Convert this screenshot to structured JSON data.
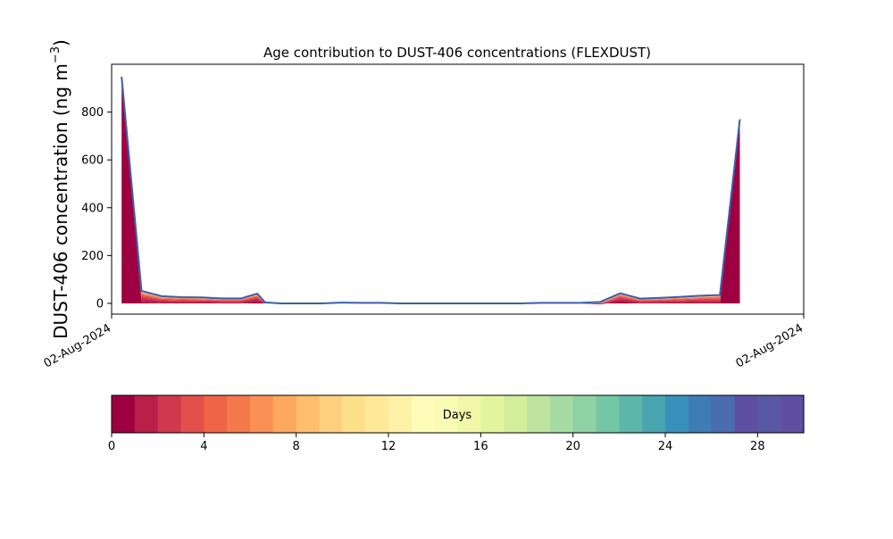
{
  "chart_data": {
    "type": "area",
    "title": "Age contribution to DUST-406 concentrations (FLEXDUST)",
    "ylabel_main": "DUST-406 concentration (ng m",
    "ylabel_sup": "−3",
    "ylabel_close": ")",
    "xlabel": "",
    "x_tick_labels": [
      "02-Aug-2024",
      "02-Aug-2024"
    ],
    "ylim": [
      -45,
      1000
    ],
    "yticks": [
      0,
      200,
      400,
      600,
      800
    ],
    "grid": false,
    "x": [
      0.5,
      1.5,
      2.5,
      3.5,
      4.5,
      5.5,
      6.5,
      7.3,
      7.7,
      8.5,
      9.5,
      10.5,
      11.5,
      12.5,
      13.5,
      14.5,
      15.5,
      16.5,
      17.5,
      18.5,
      19.5,
      20.5,
      21.5,
      22.5,
      23.5,
      24.5,
      25.5,
      26.5,
      27.5,
      28.5,
      29.5,
      30.5,
      31.5
    ],
    "series_totals": [
      948,
      52,
      30,
      26,
      25,
      21,
      21,
      41,
      4,
      0,
      0,
      0,
      3,
      2,
      2,
      0,
      0,
      0,
      0,
      0,
      0,
      0,
      2,
      2,
      2,
      6,
      42,
      20,
      23,
      27,
      32,
      35,
      770
    ],
    "bottom_layer": [
      948,
      5,
      0,
      0,
      0,
      0,
      0,
      8,
      0,
      0,
      0,
      0,
      0,
      0,
      0,
      0,
      0,
      0,
      0,
      0,
      0,
      0,
      0,
      0,
      0,
      -4,
      8,
      0,
      0,
      0,
      0,
      0,
      770
    ],
    "colorbar": {
      "label": "Days",
      "range": [
        0,
        30
      ],
      "ticks": [
        0,
        4,
        8,
        12,
        16,
        20,
        24,
        28
      ],
      "colors": [
        "#9e0142",
        "#b91f48",
        "#d0384e",
        "#e1504a",
        "#ee6445",
        "#f57a4b",
        "#f99154",
        "#fca85e",
        "#fdbe6e",
        "#fdd07f",
        "#fee08b",
        "#fee999",
        "#fff1a8",
        "#fffbb8",
        "#f9fcb5",
        "#f1f9a9",
        "#e4f49d",
        "#d2ed9c",
        "#bde5a0",
        "#a6dba4",
        "#8fd2a4",
        "#74c7a5",
        "#5cb7aa",
        "#49a5af",
        "#3990ba",
        "#3e7cb6",
        "#4a6cb0",
        "#5e4fa2",
        "#5858a4",
        "#5e4fa2"
      ]
    },
    "line_color": "#3b5fa8"
  }
}
